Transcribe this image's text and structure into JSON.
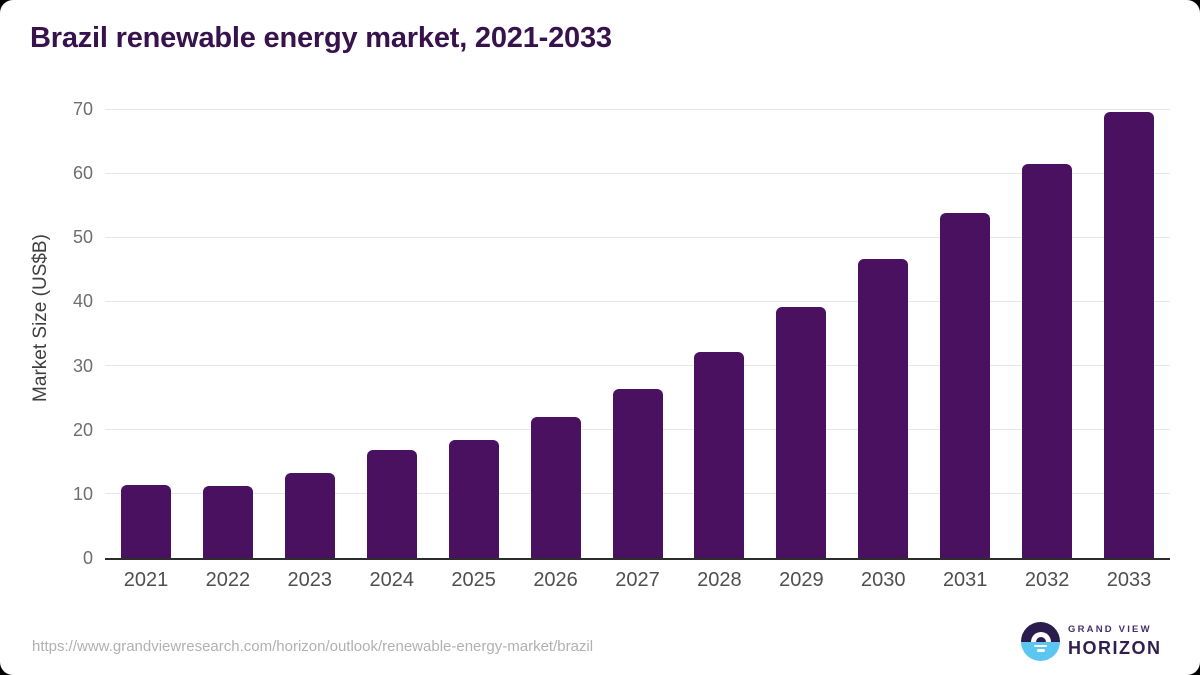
{
  "page": {
    "background_color": "#000000",
    "card_color": "#ffffff"
  },
  "header": {
    "title": "Brazil renewable energy market, 2021-2033"
  },
  "chart_data": {
    "type": "bar",
    "title": "Brazil renewable energy market, 2021-2033",
    "categories": [
      "2021",
      "2022",
      "2023",
      "2024",
      "2025",
      "2026",
      "2027",
      "2028",
      "2029",
      "2030",
      "2031",
      "2032",
      "2033"
    ],
    "values": [
      11.4,
      11.2,
      13.2,
      16.9,
      18.4,
      22.0,
      26.4,
      32.1,
      39.2,
      46.6,
      53.8,
      61.4,
      69.5
    ],
    "xlabel": "",
    "ylabel": "Market Size (US$B)",
    "ylim": [
      0,
      70
    ],
    "yticks": [
      0,
      10,
      20,
      30,
      40,
      50,
      60,
      70
    ],
    "grid": true,
    "legend": false,
    "bar_color": "#4a1160"
  },
  "colors": {
    "title": "#37124d",
    "bar": "#4a1160",
    "gridline": "#e7e7e7",
    "axis": "#2d2d2d",
    "y_tick_label": "#6e6e6e",
    "x_tick_label": "#4f4f4f",
    "footer_url": "#b1b1b1",
    "logo_dark": "#2b1c4e",
    "logo_blue": "#5cc6f3"
  },
  "footer": {
    "source_url": "https://www.grandviewresearch.com/horizon/outlook/renewable-energy-market/brazil",
    "logo": {
      "line1": "GRAND VIEW",
      "line2": "HORIZON"
    }
  }
}
